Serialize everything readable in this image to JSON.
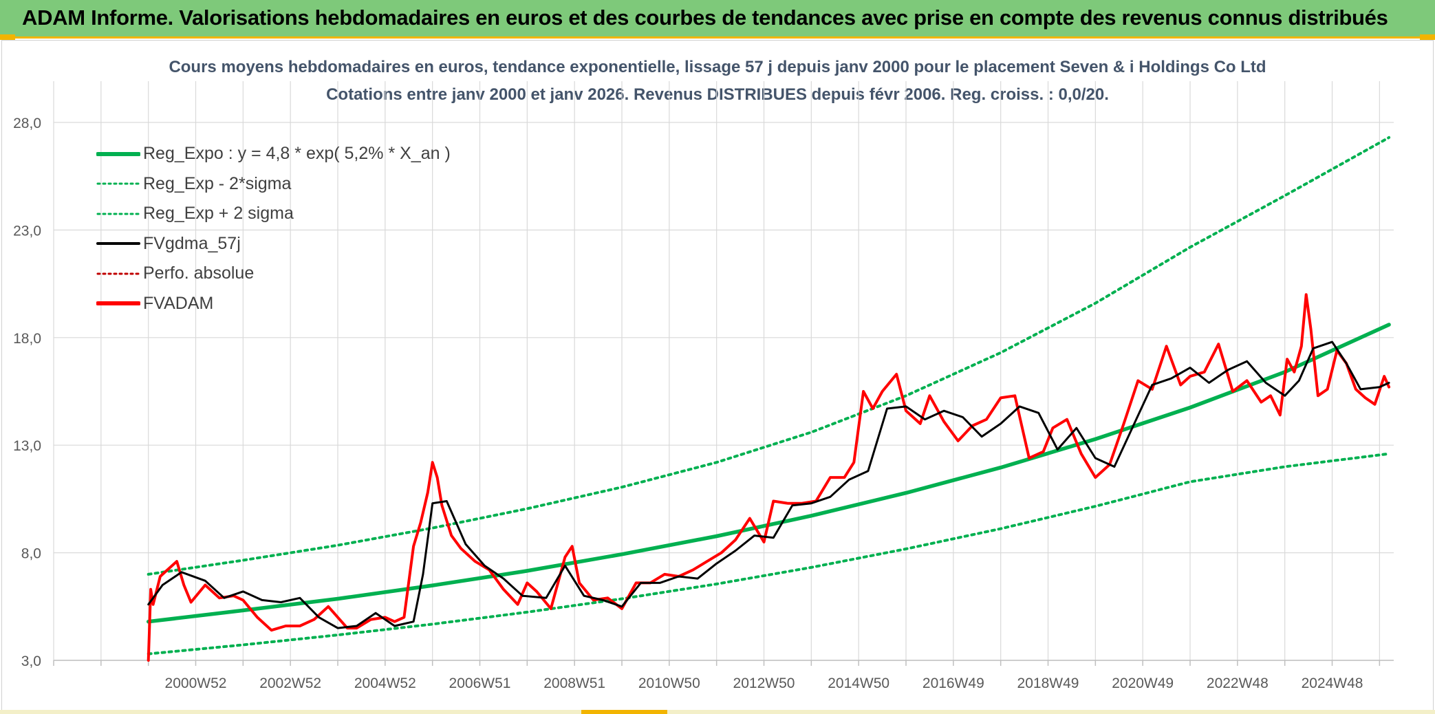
{
  "banner": {
    "title": "ADAM Informe. Valorisations hebdomadaires en euros et des courbes de tendances avec prise en compte des revenus connus distribués"
  },
  "chart_data": {
    "type": "line",
    "title": "Cours moyens hebdomadaires en euros, tendance exponentielle, lissage 57 j depuis janv 2000 pour le placement Seven & i Holdings Co Ltd",
    "subtitle": "Cotations entre janv 2000 et janv 2026. Revenus DISTRIBUES depuis févr 2006. Reg. croiss. : 0,0/20.",
    "xlabel": "",
    "ylabel": "",
    "xlim": [
      1998.0,
      2026.3
    ],
    "ylim": [
      3.0,
      28.0
    ],
    "ytick_labels": [
      "3,0",
      "8,0",
      "13,0",
      "18,0",
      "23,0",
      "28,0"
    ],
    "ytick_values": [
      3,
      8,
      13,
      18,
      23,
      28
    ],
    "xtick_labels": [
      "2000W52",
      "2002W52",
      "2004W52",
      "2006W51",
      "2008W51",
      "2010W50",
      "2012W50",
      "2014W50",
      "2016W49",
      "2018W49",
      "2020W49",
      "2022W48",
      "2024W48"
    ],
    "xtick_values": [
      2001.0,
      2003.0,
      2005.0,
      2007.0,
      2009.0,
      2011.0,
      2013.0,
      2015.0,
      2017.0,
      2019.0,
      2021.0,
      2023.0,
      2025.0
    ],
    "grid": true,
    "legend_position": "top-left",
    "series": [
      {
        "name": "Reg_Expo : y = 4,8 * exp( 5,2% *  X_an )",
        "color": "#00b050",
        "style": "solid-thick",
        "x": [
          2000.0,
          2002.0,
          2004.0,
          2006.0,
          2008.0,
          2010.0,
          2012.0,
          2014.0,
          2016.0,
          2018.0,
          2020.0,
          2022.0,
          2024.0,
          2026.2
        ],
        "y": [
          4.8,
          5.32,
          5.86,
          6.48,
          7.16,
          7.93,
          8.77,
          9.72,
          10.78,
          11.96,
          13.28,
          14.75,
          16.4,
          18.6
        ]
      },
      {
        "name": "Reg_Exp - 2*sigma",
        "color": "#00b050",
        "style": "dotted",
        "x": [
          2000.0,
          2002.0,
          2004.0,
          2006.0,
          2008.0,
          2010.0,
          2012.0,
          2014.0,
          2016.0,
          2018.0,
          2020.0,
          2022.0,
          2024.0,
          2026.2
        ],
        "y": [
          3.3,
          3.72,
          4.18,
          4.68,
          5.24,
          5.86,
          6.55,
          7.32,
          8.18,
          9.12,
          10.16,
          11.3,
          12.0,
          12.6
        ]
      },
      {
        "name": "Reg_Exp + 2 sigma",
        "color": "#00b050",
        "style": "dotted",
        "x": [
          2000.0,
          2002.0,
          2004.0,
          2006.0,
          2008.0,
          2010.0,
          2012.0,
          2014.0,
          2016.0,
          2018.0,
          2020.0,
          2022.0,
          2024.0,
          2026.2
        ],
        "y": [
          7.0,
          7.65,
          8.35,
          9.15,
          10.05,
          11.05,
          12.2,
          13.6,
          15.3,
          17.3,
          19.6,
          22.2,
          24.6,
          27.3
        ]
      },
      {
        "name": "FVgdma_57j",
        "color": "#000000",
        "style": "solid",
        "x": [
          2000.0,
          2000.3,
          2000.7,
          2001.2,
          2001.6,
          2002.0,
          2002.4,
          2002.8,
          2003.2,
          2003.6,
          2004.0,
          2004.4,
          2004.8,
          2005.2,
          2005.6,
          2005.8,
          2006.0,
          2006.3,
          2006.7,
          2007.1,
          2007.5,
          2007.9,
          2008.4,
          2008.8,
          2009.2,
          2009.6,
          2010.0,
          2010.4,
          2010.8,
          2011.2,
          2011.6,
          2012.0,
          2012.4,
          2012.8,
          2013.2,
          2013.6,
          2014.0,
          2014.4,
          2014.8,
          2015.2,
          2015.6,
          2016.0,
          2016.4,
          2016.8,
          2017.2,
          2017.6,
          2018.0,
          2018.4,
          2018.8,
          2019.2,
          2019.6,
          2020.0,
          2020.4,
          2020.8,
          2021.2,
          2021.6,
          2022.0,
          2022.4,
          2022.8,
          2023.2,
          2023.6,
          2024.0,
          2024.3,
          2024.6,
          2025.0,
          2025.3,
          2025.6,
          2026.0,
          2026.2
        ],
        "y": [
          5.6,
          6.5,
          7.1,
          6.7,
          5.9,
          6.2,
          5.8,
          5.7,
          5.9,
          5.0,
          4.5,
          4.6,
          5.2,
          4.6,
          4.8,
          7.0,
          10.3,
          10.4,
          8.4,
          7.4,
          6.8,
          6.0,
          5.9,
          7.4,
          6.0,
          5.8,
          5.5,
          6.6,
          6.6,
          6.9,
          6.8,
          7.5,
          8.1,
          8.8,
          8.7,
          10.2,
          10.3,
          10.6,
          11.4,
          11.8,
          14.7,
          14.8,
          14.2,
          14.6,
          14.3,
          13.4,
          14.0,
          14.8,
          14.5,
          12.8,
          13.8,
          12.4,
          12.0,
          13.9,
          15.8,
          16.1,
          16.6,
          15.9,
          16.5,
          16.9,
          15.9,
          15.3,
          16.0,
          17.5,
          17.8,
          16.8,
          15.6,
          15.7,
          15.9
        ]
      },
      {
        "name": "Perfo. absolue",
        "color": "#c00000",
        "style": "dotted",
        "x": [],
        "y": []
      },
      {
        "name": "FVADAM",
        "color": "#ff0000",
        "style": "solid-thick",
        "x": [
          2000.0,
          2000.05,
          2000.1,
          2000.25,
          2000.4,
          2000.6,
          2000.75,
          2000.9,
          2001.2,
          2001.5,
          2001.8,
          2002.0,
          2002.3,
          2002.6,
          2002.9,
          2003.2,
          2003.5,
          2003.8,
          2004.0,
          2004.2,
          2004.4,
          2004.7,
          2005.0,
          2005.2,
          2005.4,
          2005.6,
          2005.75,
          2005.9,
          2006.0,
          2006.1,
          2006.2,
          2006.4,
          2006.6,
          2006.9,
          2007.2,
          2007.5,
          2007.8,
          2008.0,
          2008.2,
          2008.5,
          2008.8,
          2008.95,
          2009.1,
          2009.4,
          2009.7,
          2010.0,
          2010.3,
          2010.6,
          2010.9,
          2011.2,
          2011.5,
          2011.8,
          2012.1,
          2012.4,
          2012.7,
          2013.0,
          2013.2,
          2013.5,
          2013.8,
          2014.1,
          2014.4,
          2014.7,
          2014.9,
          2015.1,
          2015.3,
          2015.5,
          2015.8,
          2016.0,
          2016.3,
          2016.5,
          2016.8,
          2017.1,
          2017.4,
          2017.7,
          2018.0,
          2018.3,
          2018.6,
          2018.9,
          2019.1,
          2019.4,
          2019.7,
          2020.0,
          2020.3,
          2020.6,
          2020.9,
          2021.2,
          2021.5,
          2021.8,
          2022.0,
          2022.3,
          2022.6,
          2022.9,
          2023.2,
          2023.5,
          2023.7,
          2023.9,
          2024.05,
          2024.2,
          2024.35,
          2024.45,
          2024.55,
          2024.7,
          2024.9,
          2025.1,
          2025.3,
          2025.5,
          2025.7,
          2025.9,
          2026.1,
          2026.2
        ],
        "y": [
          3.0,
          6.3,
          5.6,
          6.9,
          7.2,
          7.6,
          6.5,
          5.7,
          6.5,
          5.9,
          6.0,
          5.8,
          5.0,
          4.4,
          4.6,
          4.6,
          4.9,
          5.5,
          5.0,
          4.5,
          4.5,
          4.9,
          5.0,
          4.8,
          5.0,
          8.3,
          9.4,
          10.8,
          12.2,
          11.5,
          10.2,
          8.8,
          8.2,
          7.6,
          7.2,
          6.3,
          5.6,
          6.6,
          6.2,
          5.4,
          7.8,
          8.3,
          6.6,
          5.8,
          5.9,
          5.4,
          6.6,
          6.6,
          7.0,
          6.9,
          7.2,
          7.6,
          8.0,
          8.6,
          9.6,
          8.5,
          10.4,
          10.3,
          10.3,
          10.4,
          11.5,
          11.5,
          12.2,
          15.5,
          14.7,
          15.5,
          16.3,
          14.6,
          14.0,
          15.3,
          14.1,
          13.2,
          13.9,
          14.2,
          15.2,
          15.3,
          12.4,
          12.7,
          13.8,
          14.2,
          12.6,
          11.5,
          12.1,
          14.0,
          16.0,
          15.6,
          17.6,
          15.8,
          16.2,
          16.4,
          17.7,
          15.5,
          16.0,
          15.0,
          15.3,
          14.4,
          17.0,
          16.4,
          17.6,
          20.0,
          18.4,
          15.3,
          15.6,
          17.4,
          16.8,
          15.6,
          15.2,
          14.9,
          16.2,
          15.7
        ]
      }
    ]
  }
}
